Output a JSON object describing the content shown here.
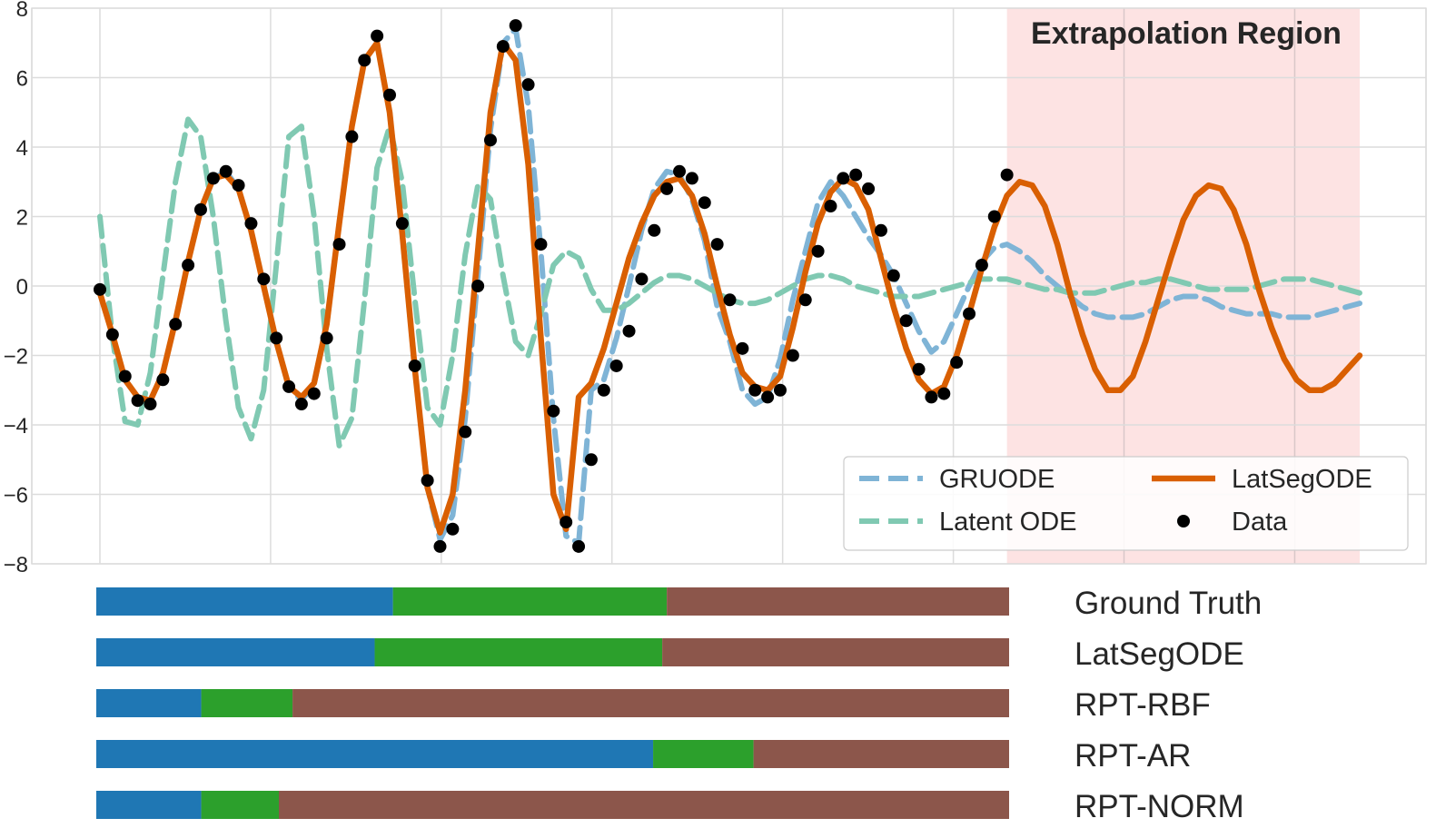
{
  "chart_data": {
    "type": "line",
    "xlim": [
      0,
      100
    ],
    "ylim": [
      -8,
      8
    ],
    "yticks": [
      8,
      6,
      4,
      2,
      0,
      -2,
      -4,
      -6,
      -8
    ],
    "ytick_labels": [
      "8",
      "6",
      "4",
      "2",
      "0",
      "−2",
      "−4",
      "−6",
      "−8"
    ],
    "grid": true,
    "extrapolation_region": {
      "label": "Extrapolation Region",
      "x_start": 72,
      "x_end": 100,
      "color": "#fde3e3"
    },
    "legend": {
      "placement": "lower-right",
      "columns": 2
    },
    "series": [
      {
        "name": "GRUODE",
        "style": "dashed",
        "color": "#7fb4d6",
        "x": [
          0,
          1,
          2,
          3,
          4,
          5,
          6,
          7,
          8,
          9,
          10,
          11,
          12,
          13,
          14,
          15,
          16,
          17,
          18,
          19,
          20,
          21,
          22,
          23,
          24,
          25,
          26,
          27,
          28,
          29,
          30,
          31,
          32,
          33,
          34,
          35,
          36,
          37,
          38,
          39,
          40,
          41,
          42,
          43,
          44,
          45,
          46,
          47,
          48,
          49,
          50,
          51,
          52,
          53,
          54,
          55,
          56,
          57,
          58,
          59,
          60,
          61,
          62,
          63,
          64,
          65,
          66,
          67,
          68,
          69,
          70,
          71,
          72,
          73,
          74,
          75,
          76,
          77,
          78,
          79,
          80,
          81,
          82,
          83,
          84,
          85,
          86,
          87,
          88,
          89,
          90,
          91,
          92,
          93,
          94,
          95,
          96,
          97,
          98,
          99,
          100
        ],
        "y": [
          -0.2,
          -1.4,
          -2.7,
          -3.2,
          -3.3,
          -2.5,
          -1.0,
          0.7,
          2.2,
          3.1,
          3.3,
          2.8,
          1.6,
          0.0,
          -1.6,
          -2.9,
          -3.3,
          -2.8,
          -1.1,
          1.8,
          4.6,
          6.5,
          7.0,
          5.0,
          1.5,
          -2.4,
          -5.8,
          -7.3,
          -6.6,
          -3.8,
          0.3,
          4.5,
          7.0,
          7.4,
          5.2,
          1.0,
          -3.8,
          -7.2,
          -7.4,
          -3.0,
          -2.7,
          -1.5,
          0.0,
          1.6,
          2.8,
          3.3,
          3.2,
          2.5,
          1.3,
          -0.6,
          -1.6,
          -3.0,
          -3.4,
          -3.2,
          -2.1,
          -0.4,
          1.0,
          2.4,
          3.0,
          2.6,
          2.0,
          1.4,
          0.9,
          0.3,
          -0.5,
          -1.3,
          -1.9,
          -1.6,
          -0.8,
          0.0,
          0.7,
          1.1,
          1.2,
          1.0,
          0.7,
          0.3,
          0.0,
          -0.3,
          -0.6,
          -0.8,
          -0.9,
          -0.9,
          -0.9,
          -0.8,
          -0.6,
          -0.4,
          -0.3,
          -0.3,
          -0.4,
          -0.6,
          -0.7,
          -0.8,
          -0.8,
          -0.8,
          -0.9,
          -0.9,
          -0.9,
          -0.8,
          -0.7,
          -0.6,
          -0.5
        ]
      },
      {
        "name": "Latent ODE",
        "style": "dashed",
        "color": "#80c9b2",
        "x": [
          0,
          1,
          2,
          3,
          4,
          5,
          6,
          7,
          8,
          9,
          10,
          11,
          12,
          13,
          14,
          15,
          16,
          17,
          18,
          19,
          20,
          21,
          22,
          23,
          24,
          25,
          26,
          27,
          28,
          29,
          30,
          31,
          32,
          33,
          34,
          35,
          36,
          37,
          38,
          39,
          40,
          41,
          42,
          43,
          44,
          45,
          46,
          47,
          48,
          49,
          50,
          51,
          52,
          53,
          54,
          55,
          56,
          57,
          58,
          59,
          60,
          61,
          62,
          63,
          64,
          65,
          66,
          67,
          68,
          69,
          70,
          71,
          72,
          73,
          74,
          75,
          76,
          77,
          78,
          79,
          80,
          81,
          82,
          83,
          84,
          85,
          86,
          87,
          88,
          89,
          90,
          91,
          92,
          93,
          94,
          95,
          96,
          97,
          98,
          99,
          100
        ],
        "y": [
          2.0,
          -1.5,
          -3.9,
          -4.0,
          -2.5,
          0.3,
          3.0,
          4.8,
          4.3,
          2.0,
          -1.0,
          -3.5,
          -4.4,
          -3.0,
          0.6,
          4.3,
          4.6,
          2.0,
          -1.8,
          -4.6,
          -3.8,
          -0.4,
          3.4,
          4.6,
          3.0,
          -0.4,
          -3.5,
          -4.0,
          -2.0,
          0.9,
          2.9,
          2.5,
          0.3,
          -1.6,
          -2.0,
          -0.8,
          0.6,
          1.0,
          0.8,
          -0.1,
          -0.7,
          -0.7,
          -0.5,
          -0.2,
          0.1,
          0.3,
          0.3,
          0.2,
          0.0,
          -0.2,
          -0.4,
          -0.5,
          -0.5,
          -0.4,
          -0.2,
          0.0,
          0.2,
          0.3,
          0.3,
          0.2,
          0.0,
          -0.1,
          -0.2,
          -0.3,
          -0.3,
          -0.3,
          -0.2,
          -0.1,
          0.0,
          0.1,
          0.2,
          0.2,
          0.2,
          0.1,
          0.0,
          -0.1,
          -0.1,
          -0.2,
          -0.2,
          -0.2,
          -0.1,
          0.0,
          0.1,
          0.1,
          0.2,
          0.2,
          0.1,
          0.0,
          -0.1,
          -0.1,
          -0.1,
          -0.1,
          0.0,
          0.1,
          0.2,
          0.2,
          0.2,
          0.1,
          0.0,
          -0.1,
          -0.2
        ]
      },
      {
        "name": "LatSegODE",
        "style": "solid",
        "color": "#d95f02",
        "x": [
          0,
          1,
          2,
          3,
          4,
          5,
          6,
          7,
          8,
          9,
          10,
          11,
          12,
          13,
          14,
          15,
          16,
          17,
          18,
          19,
          20,
          21,
          22,
          23,
          24,
          25,
          26,
          27,
          28,
          29,
          30,
          31,
          32,
          33,
          34,
          35,
          36,
          37,
          38,
          39,
          40,
          41,
          42,
          43,
          44,
          45,
          46,
          47,
          48,
          49,
          50,
          51,
          52,
          53,
          54,
          55,
          56,
          57,
          58,
          59,
          60,
          61,
          62,
          63,
          64,
          65,
          66,
          67,
          68,
          69,
          70,
          71,
          72,
          73,
          74,
          75,
          76,
          77,
          78,
          79,
          80,
          81,
          82,
          83,
          84,
          85,
          86,
          87,
          88,
          89,
          90,
          91,
          92,
          93,
          94,
          95,
          96,
          97,
          98,
          99,
          100
        ],
        "y": [
          -0.2,
          -1.4,
          -2.7,
          -3.2,
          -3.3,
          -2.5,
          -1.0,
          0.7,
          2.2,
          3.1,
          3.2,
          2.8,
          1.6,
          0.0,
          -1.6,
          -2.9,
          -3.2,
          -2.8,
          -1.1,
          1.8,
          4.6,
          6.5,
          7.0,
          5.0,
          1.5,
          -2.4,
          -5.8,
          -7.1,
          -6.0,
          -3.0,
          1.0,
          5.0,
          7.0,
          6.5,
          3.5,
          -1.5,
          -6.0,
          -7.0,
          -3.2,
          -2.8,
          -1.8,
          -0.5,
          0.8,
          1.8,
          2.6,
          3.0,
          3.1,
          2.6,
          1.5,
          0.0,
          -1.4,
          -2.5,
          -2.9,
          -3.0,
          -2.6,
          -1.2,
          0.4,
          1.8,
          2.7,
          3.1,
          2.9,
          2.2,
          0.8,
          -0.6,
          -1.8,
          -2.7,
          -3.1,
          -2.9,
          -2.0,
          -0.8,
          0.5,
          1.7,
          2.6,
          3.0,
          2.9,
          2.3,
          1.2,
          -0.2,
          -1.4,
          -2.4,
          -3.0,
          -3.0,
          -2.6,
          -1.6,
          -0.4,
          0.8,
          1.9,
          2.6,
          2.9,
          2.8,
          2.2,
          1.2,
          -0.1,
          -1.2,
          -2.1,
          -2.7,
          -3.0,
          -3.0,
          -2.8,
          -2.4,
          -2.0
        ]
      },
      {
        "name": "Data",
        "style": "markers",
        "color": "#000000",
        "x": [
          0,
          1,
          2,
          3,
          4,
          5,
          6,
          7,
          8,
          9,
          10,
          11,
          12,
          13,
          14,
          15,
          16,
          17,
          18,
          19,
          20,
          21,
          22,
          23,
          24,
          25,
          26,
          27,
          28,
          29,
          30,
          31,
          32,
          33,
          34,
          35,
          36,
          37,
          38,
          39,
          40,
          41,
          42,
          43,
          44,
          45,
          46,
          47,
          48,
          49,
          50,
          51,
          52,
          53,
          54,
          55,
          56,
          57,
          58,
          59,
          60,
          61,
          62,
          63,
          64,
          65,
          66,
          67,
          68,
          69,
          70,
          71,
          72
        ],
        "y": [
          -0.1,
          -1.4,
          -2.6,
          -3.3,
          -3.4,
          -2.7,
          -1.1,
          0.6,
          2.2,
          3.1,
          3.3,
          2.9,
          1.8,
          0.2,
          -1.5,
          -2.9,
          -3.4,
          -3.1,
          -1.5,
          1.2,
          4.3,
          6.5,
          7.2,
          5.5,
          1.8,
          -2.3,
          -5.6,
          -7.5,
          -7.0,
          -4.2,
          0.0,
          4.2,
          6.9,
          7.5,
          5.8,
          1.2,
          -3.6,
          -6.8,
          -7.5,
          -5.0,
          -3.0,
          -2.3,
          -1.3,
          0.2,
          1.6,
          2.8,
          3.3,
          3.1,
          2.4,
          1.2,
          -0.4,
          -1.8,
          -3.0,
          -3.2,
          -3.0,
          -2.0,
          -0.4,
          1.0,
          2.3,
          3.1,
          3.2,
          2.8,
          1.6,
          0.3,
          -1.0,
          -2.4,
          -3.2,
          -3.1,
          -2.2,
          -0.8,
          0.6,
          2.0,
          3.2
        ]
      }
    ]
  },
  "segmentation": {
    "rows": [
      {
        "label": "Ground Truth",
        "segments": [
          32.5,
          30.0,
          37.5
        ]
      },
      {
        "label": "LatSegODE",
        "segments": [
          30.5,
          31.5,
          38.0
        ]
      },
      {
        "label": "RPT-RBF",
        "segments": [
          11.5,
          10.0,
          78.5
        ]
      },
      {
        "label": "RPT-AR",
        "segments": [
          61.0,
          11.0,
          28.0
        ]
      },
      {
        "label": "RPT-NORM",
        "segments": [
          11.5,
          8.5,
          80.0
        ]
      }
    ],
    "colors": [
      "#1f77b4",
      "#2ca02c",
      "#8c564b"
    ]
  }
}
